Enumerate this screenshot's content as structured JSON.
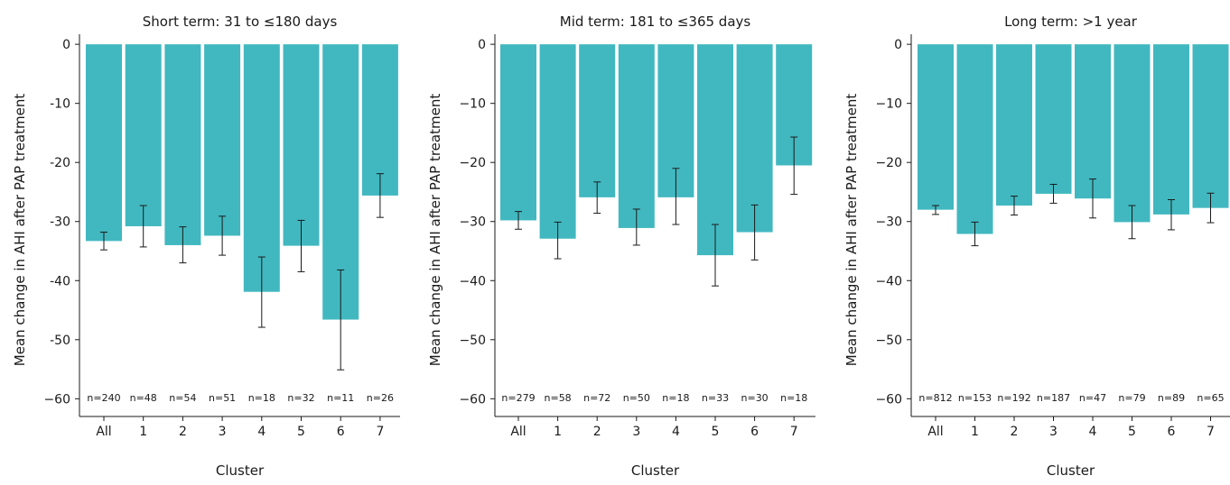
{
  "chart_data": [
    {
      "type": "bar",
      "title": "Short term: 31 to ≤180 days",
      "xlabel": "Cluster",
      "ylabel": "Mean change in AHI after PAP treatment",
      "categories": [
        "All",
        "1",
        "2",
        "3",
        "4",
        "5",
        "6",
        "7"
      ],
      "values": [
        -33.3,
        -30.8,
        -34.0,
        -32.4,
        -41.9,
        -34.1,
        -46.6,
        -25.6
      ],
      "error_low": [
        -34.8,
        -34.3,
        -37.0,
        -35.7,
        -47.9,
        -38.5,
        -55.1,
        -29.3
      ],
      "error_high": [
        -31.8,
        -27.3,
        -30.9,
        -29.1,
        -36.0,
        -29.8,
        -38.2,
        -21.9
      ],
      "n_labels": [
        "n=240",
        "n=48",
        "n=54",
        "n=51",
        "n=18",
        "n=32",
        "n=11",
        "n=26"
      ],
      "ylim": [
        -63,
        1.7
      ],
      "yticks": [
        0,
        -10,
        -20,
        -30,
        -40,
        -50,
        -60
      ],
      "ytick_labels": [
        "0",
        "-10",
        "-20",
        "-30",
        "-40",
        "-50",
        "−60"
      ],
      "bar_color": "#41b8c0"
    },
    {
      "type": "bar",
      "title": "Mid term: 181 to ≤365 days",
      "xlabel": "Cluster",
      "ylabel": "Mean change in AHI after PAP treatment",
      "categories": [
        "All",
        "1",
        "2",
        "3",
        "4",
        "5",
        "6",
        "7"
      ],
      "values": [
        -29.8,
        -32.9,
        -25.9,
        -31.1,
        -25.9,
        -35.7,
        -31.8,
        -20.5
      ],
      "error_low": [
        -31.3,
        -36.3,
        -28.6,
        -34.0,
        -30.5,
        -40.9,
        -36.5,
        -25.4
      ],
      "error_high": [
        -28.3,
        -30.1,
        -23.3,
        -27.9,
        -21.0,
        -30.5,
        -27.2,
        -15.7
      ],
      "n_labels": [
        "n=279",
        "n=58",
        "n=72",
        "n=50",
        "n=18",
        "n=33",
        "n=30",
        "n=18"
      ],
      "ylim": [
        -63,
        1.7
      ],
      "yticks": [
        0,
        -10,
        -20,
        -30,
        -40,
        -50,
        -60
      ],
      "ytick_labels": [
        "0",
        "−10",
        "−20",
        "−30",
        "−40",
        "−50",
        "−60"
      ],
      "bar_color": "#41b8c0"
    },
    {
      "type": "bar",
      "title": "Long term: >1 year",
      "xlabel": "Cluster",
      "ylabel": "Mean change in AHI after PAP treatment",
      "categories": [
        "All",
        "1",
        "2",
        "3",
        "4",
        "5",
        "6",
        "7"
      ],
      "values": [
        -28.0,
        -32.1,
        -27.3,
        -25.3,
        -26.1,
        -30.1,
        -28.8,
        -27.7
      ],
      "error_low": [
        -28.8,
        -34.1,
        -28.9,
        -26.9,
        -29.4,
        -32.9,
        -31.4,
        -30.2
      ],
      "error_high": [
        -27.3,
        -30.1,
        -25.7,
        -23.7,
        -22.8,
        -27.3,
        -26.3,
        -25.2
      ],
      "n_labels": [
        "n=812",
        "n=153",
        "n=192",
        "n=187",
        "n=47",
        "n=79",
        "n=89",
        "n=65"
      ],
      "ylim": [
        -63,
        1.7
      ],
      "yticks": [
        0,
        -10,
        -20,
        -30,
        -40,
        -50,
        -60
      ],
      "ytick_labels": [
        "0",
        "−10",
        "−20",
        "−30",
        "−40",
        "−50",
        "−60"
      ],
      "bar_color": "#41b8c0"
    }
  ]
}
